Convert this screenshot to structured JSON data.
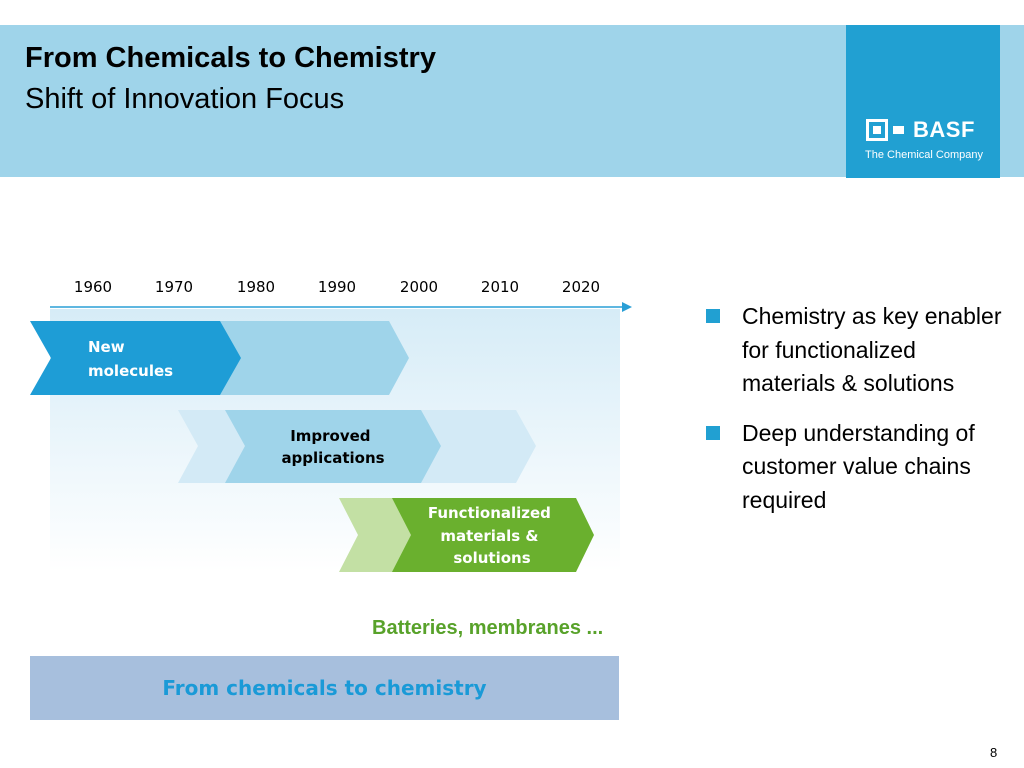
{
  "slide": {
    "title": "From Chemicals to Chemistry",
    "subtitle": "Shift of Innovation Focus",
    "page_number": "8"
  },
  "logo": {
    "name": "BASF",
    "tagline": "The Chemical Company"
  },
  "timeline": {
    "years": [
      "1960",
      "1970",
      "1980",
      "1990",
      "2000",
      "2010",
      "2020"
    ],
    "phases": [
      {
        "lines": [
          "New",
          "molecules"
        ]
      },
      {
        "lines": [
          "Improved",
          "applications"
        ]
      },
      {
        "lines": [
          "Functionalized",
          "materials &",
          "solutions"
        ]
      }
    ]
  },
  "examples_text": "Batteries, membranes ...",
  "footer_banner": "From chemicals to chemistry",
  "bullets": [
    "Chemistry as key enabler for functionalized materials & solutions",
    "Deep understanding of customer value chains required"
  ],
  "colors": {
    "header_bg": "#9fd4ea",
    "brand_blue": "#21a0d2",
    "green": "#6ab02e",
    "examples_green": "#58a22a"
  }
}
